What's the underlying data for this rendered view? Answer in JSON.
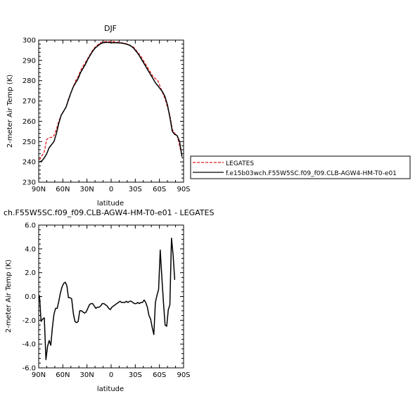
{
  "chart_data": [
    {
      "type": "line",
      "title": "DJF",
      "xlabel": "latitude",
      "ylabel": "2-meter Air Temp (K)",
      "xlim": [
        90,
        -90
      ],
      "ylim": [
        230,
        300
      ],
      "x_ticks": [
        90,
        60,
        30,
        0,
        -30,
        -60,
        -90
      ],
      "x_tick_labels": [
        "90N",
        "60N",
        "30N",
        "0",
        "30S",
        "60S",
        "90S"
      ],
      "y_ticks": [
        230,
        240,
        250,
        260,
        270,
        280,
        290,
        300
      ],
      "y_tick_labels": [
        "230",
        "240",
        "250",
        "260",
        "270",
        "280",
        "290",
        "300"
      ],
      "grid": false,
      "legend_position": "right",
      "series": [
        {
          "name": "LEGATES",
          "color": "#e31a1c",
          "dash": "dashed",
          "points": [
            [
              89,
              241
            ],
            [
              86,
              243
            ],
            [
              83,
              245
            ],
            [
              80,
              251
            ],
            [
              77,
              252
            ],
            [
              74,
              252
            ],
            [
              71,
              253
            ],
            [
              68,
              256
            ],
            [
              65,
              260
            ],
            [
              62,
              263
            ],
            [
              59,
              265
            ],
            [
              56,
              267
            ],
            [
              53,
              271
            ],
            [
              50,
              274
            ],
            [
              47,
              277
            ],
            [
              44,
              280
            ],
            [
              41,
              282
            ],
            [
              38,
              285
            ],
            [
              35,
              287
            ],
            [
              32,
              289
            ],
            [
              29,
              291
            ],
            [
              26,
              293
            ],
            [
              23,
              295
            ],
            [
              20,
              296.5
            ],
            [
              17,
              297.5
            ],
            [
              14,
              298.5
            ],
            [
              11,
              299
            ],
            [
              8,
              299.2
            ],
            [
              5,
              299.3
            ],
            [
              2,
              299.2
            ],
            [
              -1,
              299.3
            ],
            [
              -4,
              299.2
            ],
            [
              -7,
              299
            ],
            [
              -10,
              298.9
            ],
            [
              -13,
              298.7
            ],
            [
              -16,
              298.5
            ],
            [
              -19,
              298.2
            ],
            [
              -22,
              297.8
            ],
            [
              -25,
              297
            ],
            [
              -28,
              296.5
            ],
            [
              -31,
              295
            ],
            [
              -34,
              293.5
            ],
            [
              -37,
              292
            ],
            [
              -40,
              290
            ],
            [
              -43,
              288
            ],
            [
              -46,
              286
            ],
            [
              -49,
              284
            ],
            [
              -52,
              282
            ],
            [
              -55,
              281
            ],
            [
              -58,
              280
            ],
            [
              -61,
              277
            ],
            [
              -64,
              274
            ],
            [
              -67,
              271
            ],
            [
              -70,
              267
            ],
            [
              -73,
              263
            ],
            [
              -76,
              256
            ],
            [
              -79,
              254
            ],
            [
              -82,
              253
            ],
            [
              -85,
              248
            ],
            [
              -88,
              243
            ]
          ]
        },
        {
          "name": "f.e15b03wch.F55W5SC.f09_f09.CLB-AGW4-HM-T0-e01",
          "color": "#000000",
          "dash": "solid",
          "points": [
            [
              89,
              240
            ],
            [
              86,
              240.5
            ],
            [
              83,
              242
            ],
            [
              80,
              244
            ],
            [
              77,
              247
            ],
            [
              74,
              248.5
            ],
            [
              71,
              250
            ],
            [
              68,
              254
            ],
            [
              65,
              259
            ],
            [
              62,
              263
            ],
            [
              59,
              265
            ],
            [
              56,
              267
            ],
            [
              53,
              270.5
            ],
            [
              50,
              274
            ],
            [
              47,
              277
            ],
            [
              44,
              279
            ],
            [
              41,
              281
            ],
            [
              38,
              284
            ],
            [
              35,
              286
            ],
            [
              32,
              288
            ],
            [
              29,
              290.5
            ],
            [
              26,
              292.5
            ],
            [
              23,
              294.5
            ],
            [
              20,
              296
            ],
            [
              17,
              297
            ],
            [
              14,
              298
            ],
            [
              11,
              298.6
            ],
            [
              8,
              298.8
            ],
            [
              5,
              298.9
            ],
            [
              2,
              298.8
            ],
            [
              -1,
              298.7
            ],
            [
              -4,
              298.7
            ],
            [
              -7,
              298.7
            ],
            [
              -10,
              298.6
            ],
            [
              -13,
              298.5
            ],
            [
              -16,
              298.3
            ],
            [
              -19,
              298
            ],
            [
              -22,
              297.6
            ],
            [
              -25,
              297
            ],
            [
              -28,
              296
            ],
            [
              -31,
              294.5
            ],
            [
              -34,
              293
            ],
            [
              -37,
              291
            ],
            [
              -40,
              289
            ],
            [
              -43,
              287
            ],
            [
              -46,
              285
            ],
            [
              -49,
              283
            ],
            [
              -52,
              281
            ],
            [
              -55,
              279
            ],
            [
              -58,
              277.5
            ],
            [
              -61,
              276
            ],
            [
              -64,
              274.5
            ],
            [
              -67,
              272
            ],
            [
              -70,
              268
            ],
            [
              -73,
              262
            ],
            [
              -76,
              255
            ],
            [
              -79,
              253.5
            ],
            [
              -82,
              253
            ],
            [
              -85,
              250
            ],
            [
              -88,
              242.5
            ]
          ]
        }
      ]
    },
    {
      "type": "line",
      "title": "ch.F55W5SC.f09_f09.CLB-AGW4-HM-T0-e01 - LEGATES",
      "xlabel": "latitude",
      "ylabel": "2-meter Air Temp (K)",
      "xlim": [
        90,
        -90
      ],
      "ylim": [
        -6,
        6
      ],
      "x_ticks": [
        90,
        60,
        30,
        0,
        -30,
        -60,
        -90
      ],
      "x_tick_labels": [
        "90N",
        "60N",
        "30N",
        "0",
        "30S",
        "60S",
        "90S"
      ],
      "y_ticks": [
        -6,
        -4,
        -2,
        0,
        2,
        4,
        6
      ],
      "y_tick_labels": [
        "-6.0",
        "-4.0",
        "-2.0",
        "0.0",
        "2.0",
        "4.0",
        "6.0"
      ],
      "grid": false,
      "series": [
        {
          "color": "#000000",
          "dash": "solid",
          "points": [
            [
              89,
              0.1
            ],
            [
              87,
              -2.1
            ],
            [
              85,
              -1.9
            ],
            [
              83,
              -1.8
            ],
            [
              81,
              -5.3
            ],
            [
              79,
              -4.2
            ],
            [
              77,
              -3.7
            ],
            [
              75,
              -4.1
            ],
            [
              73,
              -2.6
            ],
            [
              71,
              -1.5
            ],
            [
              69,
              -1.0
            ],
            [
              67,
              -1.0
            ],
            [
              65,
              -0.4
            ],
            [
              63,
              0.3
            ],
            [
              61,
              0.8
            ],
            [
              59,
              1.1
            ],
            [
              57,
              1.2
            ],
            [
              55,
              0.9
            ],
            [
              53,
              -0.1
            ],
            [
              51,
              -0.1
            ],
            [
              49,
              -0.2
            ],
            [
              47,
              -1.4
            ],
            [
              45,
              -2.1
            ],
            [
              43,
              -2.2
            ],
            [
              41,
              -2.1
            ],
            [
              39,
              -1.2
            ],
            [
              37,
              -1.2
            ],
            [
              35,
              -1.3
            ],
            [
              33,
              -1.4
            ],
            [
              31,
              -1.3
            ],
            [
              29,
              -1.0
            ],
            [
              27,
              -0.7
            ],
            [
              25,
              -0.6
            ],
            [
              23,
              -0.6
            ],
            [
              21,
              -0.8
            ],
            [
              19,
              -1.0
            ],
            [
              17,
              -0.9
            ],
            [
              15,
              -0.9
            ],
            [
              13,
              -0.8
            ],
            [
              11,
              -0.6
            ],
            [
              9,
              -0.6
            ],
            [
              7,
              -0.7
            ],
            [
              5,
              -0.8
            ],
            [
              3,
              -1.0
            ],
            [
              1,
              -1.1
            ],
            [
              -1,
              -0.9
            ],
            [
              -3,
              -0.8
            ],
            [
              -5,
              -0.7
            ],
            [
              -7,
              -0.6
            ],
            [
              -9,
              -0.5
            ],
            [
              -11,
              -0.4
            ],
            [
              -13,
              -0.5
            ],
            [
              -15,
              -0.5
            ],
            [
              -17,
              -0.5
            ],
            [
              -19,
              -0.4
            ],
            [
              -21,
              -0.5
            ],
            [
              -23,
              -0.4
            ],
            [
              -25,
              -0.4
            ],
            [
              -27,
              -0.5
            ],
            [
              -29,
              -0.6
            ],
            [
              -31,
              -0.6
            ],
            [
              -33,
              -0.5
            ],
            [
              -35,
              -0.6
            ],
            [
              -37,
              -0.5
            ],
            [
              -39,
              -0.5
            ],
            [
              -41,
              -0.3
            ],
            [
              -43,
              -0.5
            ],
            [
              -45,
              -0.9
            ],
            [
              -47,
              -1.6
            ],
            [
              -49,
              -1.9
            ],
            [
              -51,
              -2.6
            ],
            [
              -53,
              -3.2
            ],
            [
              -55,
              -0.5
            ],
            [
              -57,
              0.1
            ],
            [
              -59,
              0.6
            ],
            [
              -61,
              3.9
            ],
            [
              -63,
              1.6
            ],
            [
              -65,
              -0.5
            ],
            [
              -67,
              -2.4
            ],
            [
              -69,
              -2.5
            ],
            [
              -71,
              -1.1
            ],
            [
              -73,
              -0.7
            ],
            [
              -75,
              4.9
            ],
            [
              -77,
              3.5
            ],
            [
              -79,
              1.4
            ]
          ]
        }
      ]
    }
  ]
}
